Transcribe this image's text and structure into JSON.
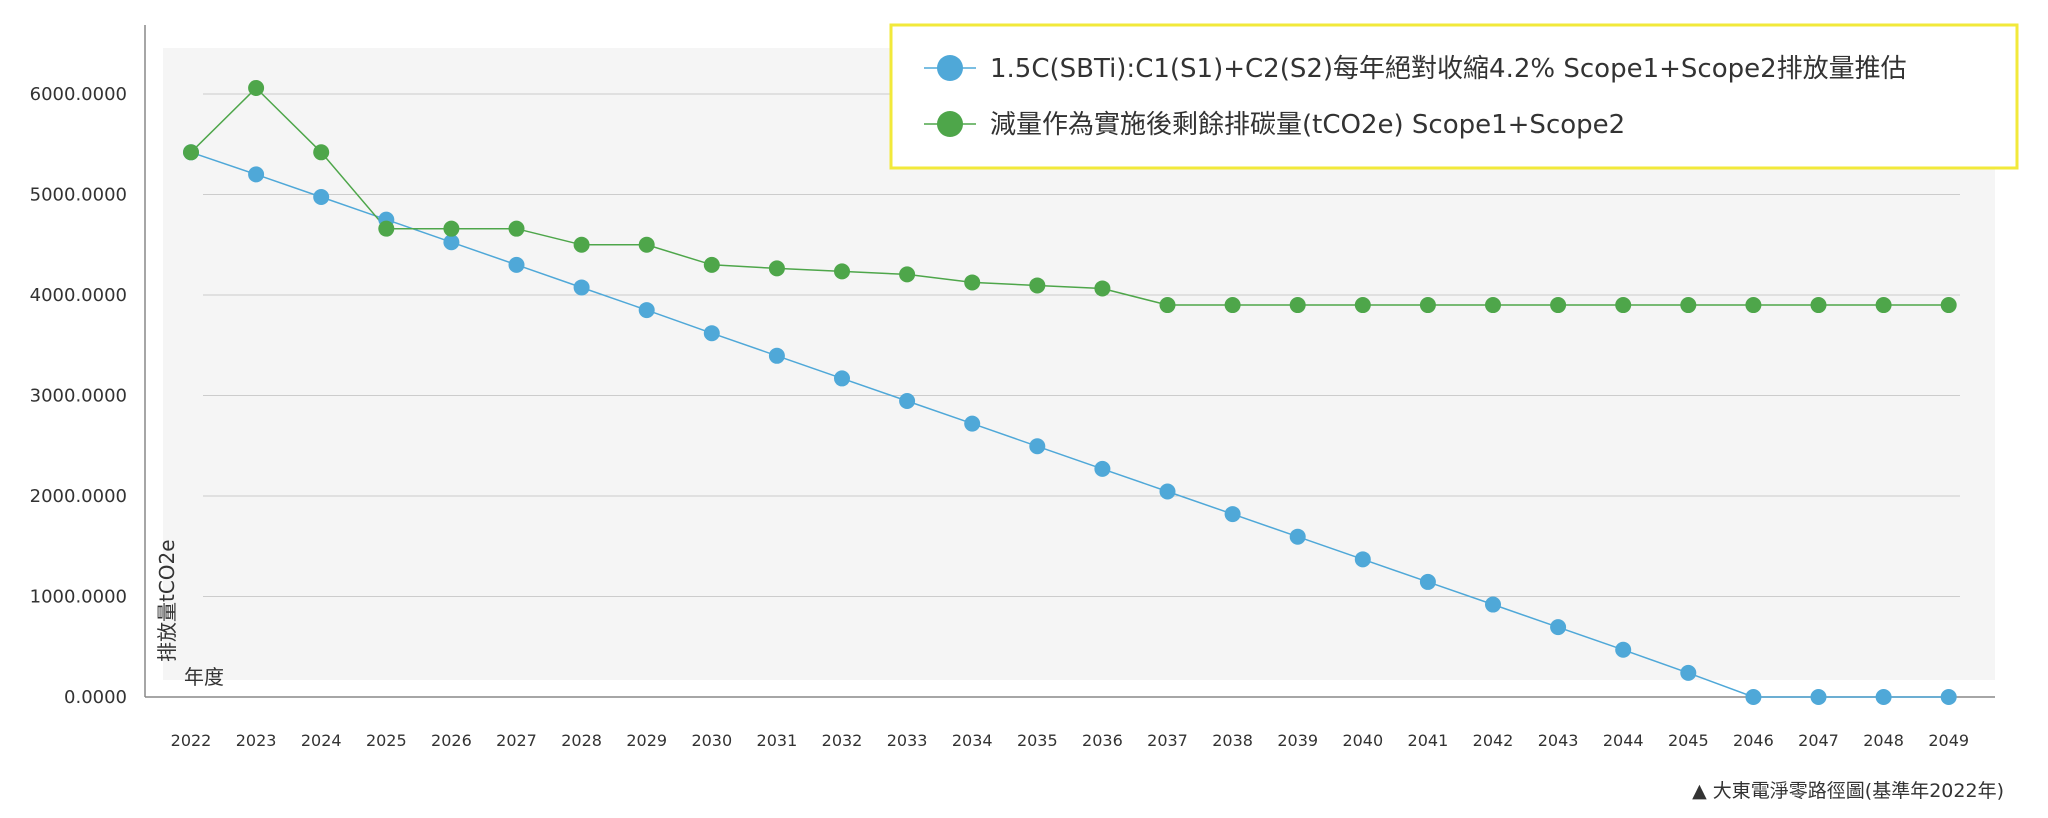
{
  "chart_data": {
    "type": "line",
    "x": [
      "2022",
      "2023",
      "2024",
      "2025",
      "2026",
      "2027",
      "2028",
      "2029",
      "2030",
      "2031",
      "2032",
      "2033",
      "2034",
      "2035",
      "2036",
      "2037",
      "2038",
      "2039",
      "2040",
      "2041",
      "2042",
      "2043",
      "2044",
      "2045",
      "2046",
      "2047",
      "2048",
      "2049"
    ],
    "series": [
      {
        "name": "1.5C(SBTi):C1(S1)+C2(S2)每年絕對收縮4.2% Scope1+Scope2排放量推估",
        "color": "#4fa8d8",
        "values": [
          5420,
          5200,
          4975,
          4750,
          4525,
          4300,
          4075,
          3850,
          3620,
          3395,
          3170,
          2945,
          2720,
          2495,
          2270,
          2045,
          1820,
          1595,
          1370,
          1145,
          920,
          695,
          470,
          240,
          0,
          0,
          0,
          0
        ]
      },
      {
        "name": "減量作為實施後剩餘排碳量(tCO2e) Scope1+Scope2",
        "color": "#4ea64a",
        "values": [
          5420,
          6060,
          5420,
          4660,
          4660,
          4660,
          4500,
          4500,
          4300,
          4265,
          4235,
          4205,
          4125,
          4095,
          4065,
          3900,
          3900,
          3900,
          3900,
          3900,
          3900,
          3900,
          3900,
          3900,
          3900,
          3900,
          3900,
          3900
        ]
      }
    ],
    "y_ticks": [
      "0.0000",
      "1000.0000",
      "2000.0000",
      "3000.0000",
      "4000.0000",
      "5000.0000",
      "6000.0000"
    ],
    "ylim": [
      0,
      6500
    ],
    "ylabel": "排放量tCO2e",
    "xlabel": "年度",
    "grid": true,
    "legend_position": "top-right",
    "legend_border_color": "#f2e93a"
  },
  "caption": "▲ 大東電淨零路徑圖(基準年2022年)"
}
